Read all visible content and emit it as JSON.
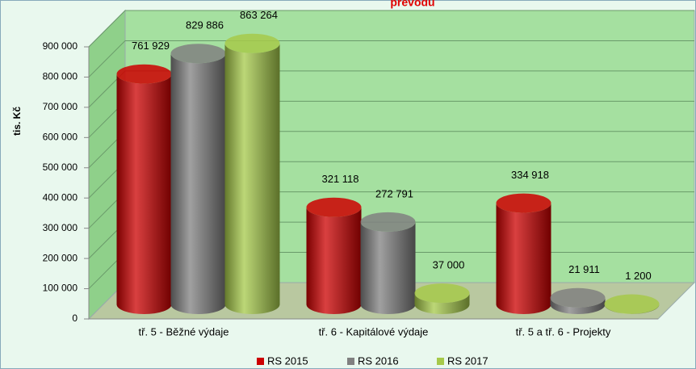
{
  "chart_data": {
    "type": "bar3d",
    "title": "převodů",
    "y_label": "tis. Kč",
    "categories": [
      "tř. 5 - Běžné výdaje",
      "tř. 6 - Kapitálové výdaje",
      "tř. 5 a tř. 6 - Projekty"
    ],
    "series": [
      {
        "name": "RS 2015",
        "color": "#cc0000",
        "values": [
          761929,
          321118,
          334918
        ],
        "value_labels": [
          "761 929",
          "321 118",
          "334 918"
        ]
      },
      {
        "name": "RS 2016",
        "color": "#808080",
        "values": [
          829886,
          272791,
          21911
        ],
        "value_labels": [
          "829 886",
          "272 791",
          "21 911"
        ]
      },
      {
        "name": "RS 2017",
        "color": "#a6c94a",
        "values": [
          863264,
          37000,
          1200
        ],
        "value_labels": [
          "863 264",
          "37 000",
          "1 200"
        ]
      }
    ],
    "ylim": [
      0,
      900000
    ],
    "yticks": [
      0,
      {
        "value": 100000,
        "label": "100 000"
      },
      {
        "value": 200000,
        "label": "200 000"
      },
      {
        "value": 300000,
        "label": "300 000"
      },
      {
        "value": 400000,
        "label": "400 000"
      },
      {
        "value": 500000,
        "label": "500 000"
      },
      {
        "value": 600000,
        "label": "600 000"
      },
      {
        "value": 700000,
        "label": "700 000"
      },
      {
        "value": 800000,
        "label": "800 000"
      },
      {
        "value": 900000,
        "label": "900 000"
      }
    ],
    "grid": true,
    "legend": "bottom"
  }
}
